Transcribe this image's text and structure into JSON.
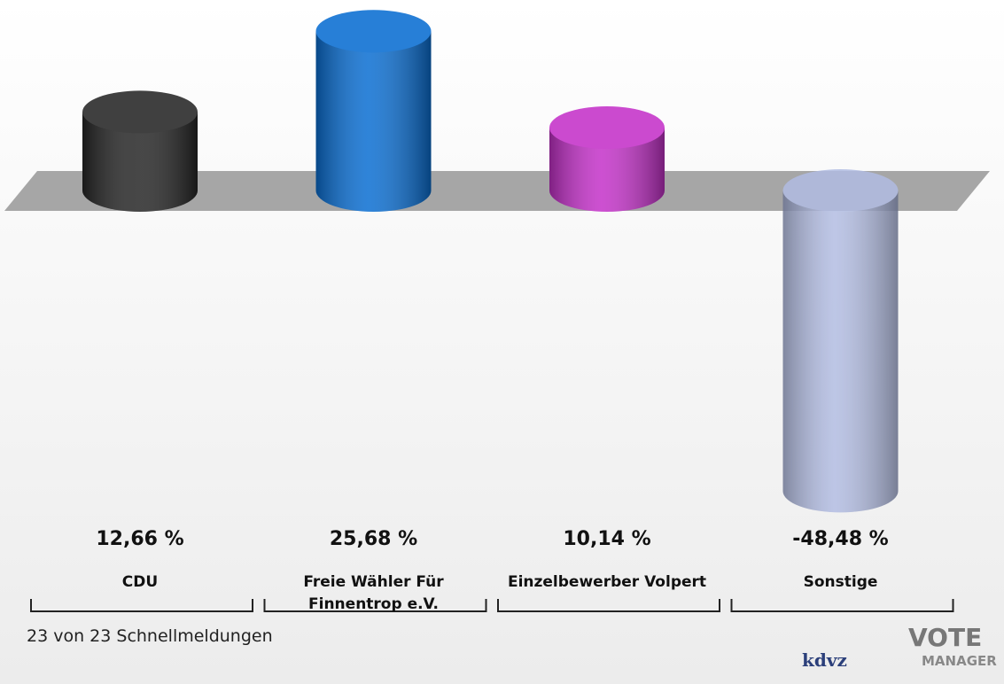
{
  "chart_data": {
    "type": "bar3d",
    "categories": [
      "CDU",
      "Freie Wähler Für Finnentrop e.V.",
      "Einzelbewerber Volpert",
      "Sonstige"
    ],
    "values": [
      12.66,
      25.68,
      10.14,
      -48.48
    ],
    "value_labels": [
      "12,66 %",
      "25,68 %",
      "10,14 %",
      "-48,48 %"
    ],
    "colors": [
      "#262626",
      "#0a6ed2",
      "#c431c9",
      "#a7b3df"
    ],
    "footnote": "23 von 23 Schnellmeldungen",
    "logo": {
      "left": "kdvz",
      "right_top": "VOTE",
      "right_bottom": "MANAGER"
    }
  }
}
